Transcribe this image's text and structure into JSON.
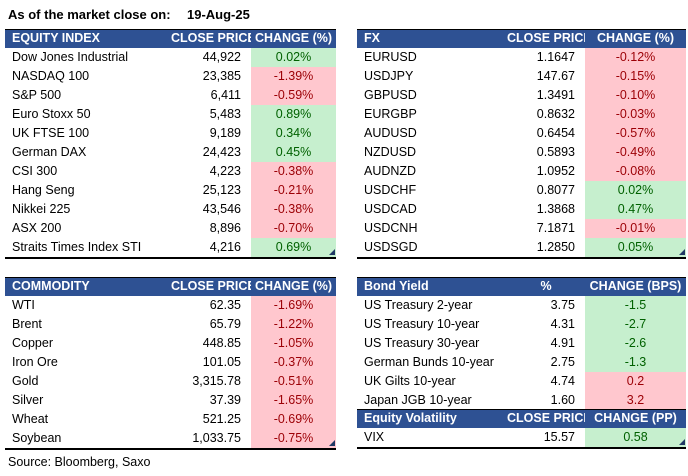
{
  "page": {
    "title_label": "As of the market close on:",
    "date": "19-Aug-25",
    "source": "Source: Bloomberg, Saxo"
  },
  "colors": {
    "header_bg": "#2E5193",
    "positive_bg": "#C6EFCE",
    "positive_text": "#006100",
    "negative_bg": "#FFC7CE",
    "negative_text": "#9C0006"
  },
  "chart_data": [
    {
      "type": "table",
      "key": "equity_index",
      "title": "EQUITY INDEX",
      "col_price": "CLOSE PRICE",
      "col_change": "CHANGE (%)",
      "rows": [
        {
          "name": "Dow Jones Industrial",
          "price": "44,922",
          "change": "0.02%",
          "tone": "green"
        },
        {
          "name": "NASDAQ 100",
          "price": "23,385",
          "change": "-1.39%",
          "tone": "red"
        },
        {
          "name": "S&P 500",
          "price": "6,411",
          "change": "-0.59%",
          "tone": "red"
        },
        {
          "name": "Euro Stoxx 50",
          "price": "5,483",
          "change": "0.89%",
          "tone": "green"
        },
        {
          "name": "UK FTSE 100",
          "price": "9,189",
          "change": "0.34%",
          "tone": "green"
        },
        {
          "name": "German DAX",
          "price": "24,423",
          "change": "0.45%",
          "tone": "green"
        },
        {
          "name": "CSI 300",
          "price": "4,223",
          "change": "-0.38%",
          "tone": "red"
        },
        {
          "name": "Hang Seng",
          "price": "25,123",
          "change": "-0.21%",
          "tone": "red"
        },
        {
          "name": "Nikkei 225",
          "price": "43,546",
          "change": "-0.38%",
          "tone": "red"
        },
        {
          "name": "ASX 200",
          "price": "8,896",
          "change": "-0.70%",
          "tone": "red"
        },
        {
          "name": "Straits Times Index STI",
          "price": "4,216",
          "change": "0.69%",
          "tone": "green"
        }
      ]
    },
    {
      "type": "table",
      "key": "fx",
      "title": "FX",
      "col_price": "CLOSE PRICE",
      "col_change": "CHANGE (%)",
      "rows": [
        {
          "name": "EURUSD",
          "price": "1.1647",
          "change": "-0.12%",
          "tone": "red"
        },
        {
          "name": "USDJPY",
          "price": "147.67",
          "change": "-0.15%",
          "tone": "red"
        },
        {
          "name": "GBPUSD",
          "price": "1.3491",
          "change": "-0.10%",
          "tone": "red"
        },
        {
          "name": "EURGBP",
          "price": "0.8632",
          "change": "-0.03%",
          "tone": "red"
        },
        {
          "name": "AUDUSD",
          "price": "0.6454",
          "change": "-0.57%",
          "tone": "red"
        },
        {
          "name": "NZDUSD",
          "price": "0.5893",
          "change": "-0.49%",
          "tone": "red"
        },
        {
          "name": "AUDNZD",
          "price": "1.0952",
          "change": "-0.08%",
          "tone": "red"
        },
        {
          "name": "USDCHF",
          "price": "0.8077",
          "change": "0.02%",
          "tone": "green"
        },
        {
          "name": "USDCAD",
          "price": "1.3868",
          "change": "0.47%",
          "tone": "green"
        },
        {
          "name": "USDCNH",
          "price": "7.1871",
          "change": "-0.01%",
          "tone": "red"
        },
        {
          "name": "USDSGD",
          "price": "1.2850",
          "change": "0.05%",
          "tone": "green"
        }
      ]
    },
    {
      "type": "table",
      "key": "commodity",
      "title": "COMMODITY",
      "col_price": "CLOSE PRICE",
      "col_change": "CHANGE (%)",
      "rows": [
        {
          "name": "WTI",
          "price": "62.35",
          "change": "-1.69%",
          "tone": "red"
        },
        {
          "name": "Brent",
          "price": "65.79",
          "change": "-1.22%",
          "tone": "red"
        },
        {
          "name": "Copper",
          "price": "448.85",
          "change": "-1.05%",
          "tone": "red"
        },
        {
          "name": "Iron Ore",
          "price": "101.05",
          "change": "-0.37%",
          "tone": "red"
        },
        {
          "name": "Gold",
          "price": "3,315.78",
          "change": "-0.51%",
          "tone": "red"
        },
        {
          "name": "Silver",
          "price": "37.39",
          "change": "-1.65%",
          "tone": "red"
        },
        {
          "name": "Wheat",
          "price": "521.25",
          "change": "-0.69%",
          "tone": "red"
        },
        {
          "name": "Soybean",
          "price": "1,033.75",
          "change": "-0.75%",
          "tone": "red"
        }
      ]
    },
    {
      "type": "table",
      "key": "bond_yield",
      "title": "Bond Yield",
      "col_price": "%",
      "col_change": "CHANGE (BPS)",
      "rows": [
        {
          "name": "US Treasury 2-year",
          "price": "3.75",
          "change": "-1.5",
          "tone": "green"
        },
        {
          "name": "US Treasury 10-year",
          "price": "4.31",
          "change": "-2.7",
          "tone": "green"
        },
        {
          "name": "US Treasury 30-year",
          "price": "4.91",
          "change": "-2.6",
          "tone": "green"
        },
        {
          "name": "German Bunds 10-year",
          "price": "2.75",
          "change": "-1.3",
          "tone": "green"
        },
        {
          "name": "UK Gilts 10-year",
          "price": "4.74",
          "change": "0.2",
          "tone": "red"
        },
        {
          "name": "Japan JGB 10-year",
          "price": "1.60",
          "change": "3.2",
          "tone": "red"
        }
      ]
    },
    {
      "type": "table",
      "key": "equity_volatility",
      "title": "Equity Volatility",
      "col_price": "CLOSE PRICE",
      "col_change": "CHANGE (PP)",
      "rows": [
        {
          "name": "VIX",
          "price": "15.57",
          "change": "0.58",
          "tone": "green"
        }
      ]
    }
  ]
}
